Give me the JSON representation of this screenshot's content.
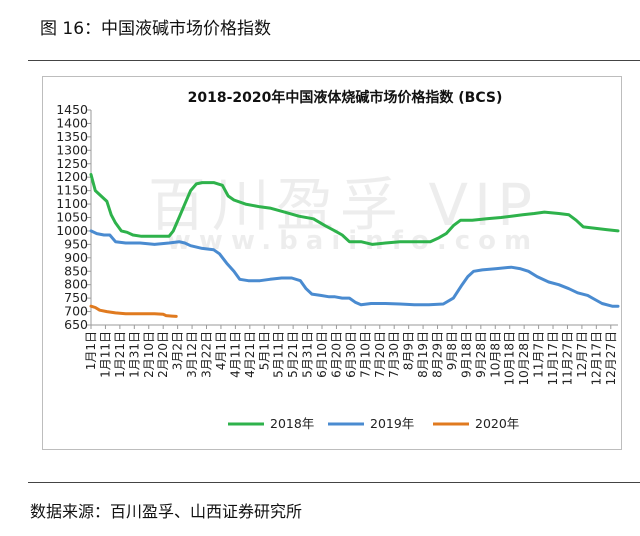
{
  "figure_title": "图 16：中国液碱市场价格指数",
  "source_text": "数据来源：百川盈孚、山西证券研究所",
  "watermark": {
    "line1": "百川盈孚 VIP",
    "line2": "www.baiinfo.com"
  },
  "colors": {
    "y2018": "#2eb24b",
    "y2019": "#4a8bd0",
    "y2020": "#e07a1f",
    "axis": "#9a9a9a",
    "text": "#222222"
  },
  "chart_data": {
    "type": "line",
    "title": "2018-2020年中国液体烧碱市场价格指数 (BCS)",
    "ylim": [
      650,
      1450
    ],
    "yticks": [
      650,
      700,
      750,
      800,
      850,
      900,
      950,
      1000,
      1050,
      1100,
      1150,
      1200,
      1250,
      1300,
      1350,
      1400,
      1450
    ],
    "x_domain": [
      1,
      366
    ],
    "xtick_labels": [
      "1月1日",
      "1月11日",
      "1月21日",
      "1月31日",
      "2月10日",
      "2月20日",
      "3月2日",
      "3月12日",
      "3月22日",
      "4月1日",
      "4月11日",
      "4月21日",
      "5月1日",
      "5月11日",
      "5月21日",
      "5月31日",
      "6月10日",
      "6月20日",
      "6月30日",
      "7月10日",
      "7月20日",
      "7月30日",
      "8月9日",
      "8月19日",
      "8月29日",
      "9月8日",
      "9月18日",
      "9月28日",
      "10月8日",
      "10月18日",
      "10月28日",
      "11月7日",
      "11月17日",
      "11月27日",
      "12月7日",
      "12月17日",
      "12月27日"
    ],
    "xtick_days": [
      1,
      11,
      21,
      31,
      41,
      51,
      61,
      71,
      81,
      91,
      101,
      111,
      121,
      131,
      141,
      151,
      161,
      171,
      181,
      191,
      201,
      211,
      221,
      231,
      241,
      251,
      261,
      271,
      281,
      291,
      301,
      311,
      321,
      331,
      341,
      351,
      361
    ],
    "legend": [
      "2018年",
      "2019年",
      "2020年"
    ],
    "series": [
      {
        "name": "2018年",
        "color_key": "y2018",
        "points": [
          [
            1,
            1210
          ],
          [
            4,
            1150
          ],
          [
            8,
            1130
          ],
          [
            12,
            1110
          ],
          [
            15,
            1060
          ],
          [
            18,
            1030
          ],
          [
            22,
            1000
          ],
          [
            26,
            995
          ],
          [
            30,
            985
          ],
          [
            36,
            980
          ],
          [
            45,
            980
          ],
          [
            55,
            980
          ],
          [
            58,
            1000
          ],
          [
            62,
            1050
          ],
          [
            66,
            1100
          ],
          [
            70,
            1150
          ],
          [
            74,
            1175
          ],
          [
            78,
            1180
          ],
          [
            86,
            1180
          ],
          [
            92,
            1170
          ],
          [
            96,
            1130
          ],
          [
            100,
            1115
          ],
          [
            108,
            1100
          ],
          [
            118,
            1090
          ],
          [
            125,
            1085
          ],
          [
            135,
            1070
          ],
          [
            145,
            1055
          ],
          [
            155,
            1045
          ],
          [
            163,
            1020
          ],
          [
            170,
            1000
          ],
          [
            175,
            985
          ],
          [
            180,
            960
          ],
          [
            188,
            960
          ],
          [
            196,
            950
          ],
          [
            205,
            955
          ],
          [
            215,
            960
          ],
          [
            225,
            960
          ],
          [
            236,
            960
          ],
          [
            242,
            975
          ],
          [
            247,
            990
          ],
          [
            252,
            1020
          ],
          [
            257,
            1040
          ],
          [
            265,
            1040
          ],
          [
            275,
            1045
          ],
          [
            285,
            1050
          ],
          [
            292,
            1055
          ],
          [
            300,
            1060
          ],
          [
            308,
            1065
          ],
          [
            315,
            1070
          ],
          [
            325,
            1065
          ],
          [
            332,
            1060
          ],
          [
            337,
            1040
          ],
          [
            342,
            1015
          ],
          [
            350,
            1010
          ],
          [
            358,
            1005
          ],
          [
            366,
            1000
          ]
        ]
      },
      {
        "name": "2019年",
        "color_key": "y2019",
        "points": [
          [
            1,
            1000
          ],
          [
            5,
            990
          ],
          [
            10,
            985
          ],
          [
            14,
            985
          ],
          [
            18,
            960
          ],
          [
            25,
            955
          ],
          [
            35,
            955
          ],
          [
            45,
            950
          ],
          [
            55,
            955
          ],
          [
            62,
            960
          ],
          [
            66,
            955
          ],
          [
            70,
            945
          ],
          [
            78,
            935
          ],
          [
            86,
            930
          ],
          [
            90,
            915
          ],
          [
            95,
            880
          ],
          [
            100,
            850
          ],
          [
            104,
            820
          ],
          [
            110,
            815
          ],
          [
            118,
            815
          ],
          [
            125,
            820
          ],
          [
            133,
            825
          ],
          [
            140,
            825
          ],
          [
            146,
            815
          ],
          [
            150,
            785
          ],
          [
            154,
            765
          ],
          [
            160,
            760
          ],
          [
            166,
            755
          ],
          [
            170,
            755
          ],
          [
            175,
            750
          ],
          [
            180,
            750
          ],
          [
            184,
            735
          ],
          [
            188,
            725
          ],
          [
            195,
            730
          ],
          [
            205,
            730
          ],
          [
            215,
            728
          ],
          [
            225,
            725
          ],
          [
            235,
            725
          ],
          [
            245,
            728
          ],
          [
            252,
            750
          ],
          [
            255,
            775
          ],
          [
            258,
            800
          ],
          [
            262,
            830
          ],
          [
            266,
            850
          ],
          [
            272,
            855
          ],
          [
            282,
            860
          ],
          [
            292,
            865
          ],
          [
            298,
            860
          ],
          [
            304,
            850
          ],
          [
            310,
            830
          ],
          [
            318,
            810
          ],
          [
            325,
            800
          ],
          [
            332,
            785
          ],
          [
            338,
            770
          ],
          [
            345,
            760
          ],
          [
            350,
            745
          ],
          [
            355,
            730
          ],
          [
            362,
            720
          ],
          [
            366,
            720
          ]
        ]
      },
      {
        "name": "2020年",
        "color_key": "y2020",
        "points": [
          [
            1,
            720
          ],
          [
            4,
            715
          ],
          [
            7,
            705
          ],
          [
            12,
            700
          ],
          [
            18,
            695
          ],
          [
            25,
            692
          ],
          [
            35,
            692
          ],
          [
            45,
            692
          ],
          [
            51,
            690
          ],
          [
            53,
            685
          ],
          [
            57,
            683
          ],
          [
            60,
            682
          ]
        ]
      }
    ]
  }
}
